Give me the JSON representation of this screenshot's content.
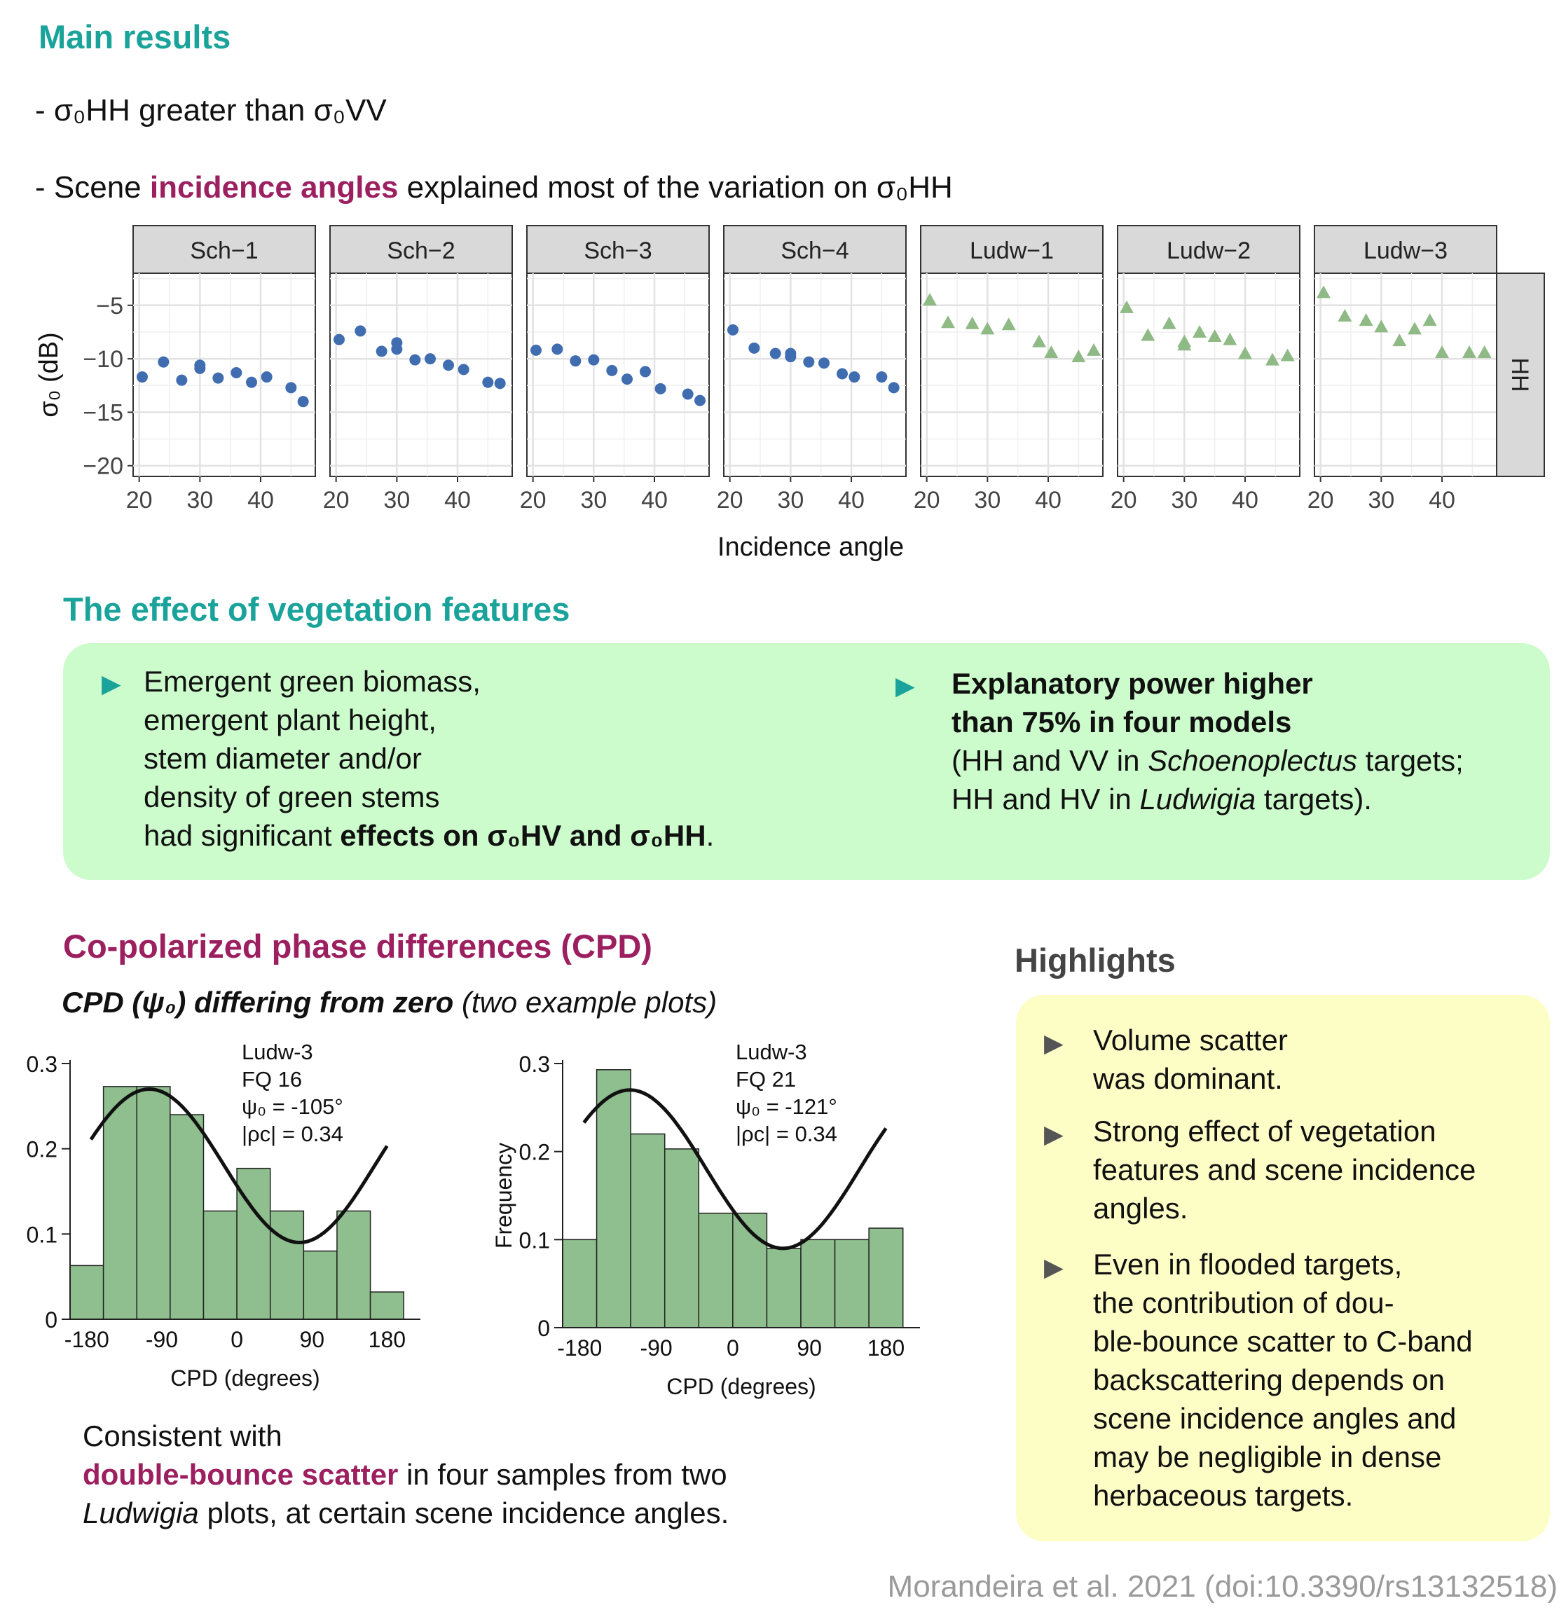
{
  "sections": {
    "main_results": {
      "heading": "Main results",
      "bullet1_prefix": "- σ₀HH greater than σ₀VV",
      "bullet2_pre": "- Scene ",
      "bullet2_highlight": "incidence angles",
      "bullet2_post": " explained most of the variation on σ₀HH"
    },
    "vegetation": {
      "heading": "The effect of vegetation features",
      "left_lines": [
        "Emergent green biomass,",
        "emergent plant height,",
        "stem diameter and/or",
        "density of green stems"
      ],
      "left_last_pre": "had significant ",
      "left_last_bold": "effects on σ₀HV and σ₀HH",
      "left_last_post": ".",
      "right_bold_1": "Explanatory power higher",
      "right_bold_2": "than 75% in four models",
      "right_l3_pre": "(HH and VV in ",
      "right_l3_italic": "Schoenoplectus",
      "right_l3_post": " targets;",
      "right_l4_pre": "HH and HV in ",
      "right_l4_italic": "Ludwigia",
      "right_l4_post": " targets)."
    },
    "cpd": {
      "heading": "Co-polarized phase differences (CPD)",
      "subtitle_bold": "CPD (ψ₀) differing from zero",
      "subtitle_rest": " (two example plots)",
      "consistent_1": "Consistent with",
      "consistent_highlight": "double-bounce scatter",
      "consistent_2": " in four samples from two",
      "consistent_3_italic": "Ludwigia",
      "consistent_3_rest": " plots, at certain scene incidence angles."
    },
    "highlights": {
      "heading": "Highlights",
      "items": [
        [
          "Volume scatter",
          "was dominant."
        ],
        [
          "Strong effect of vegetation",
          "features and scene incidence",
          "angles."
        ],
        [
          "Even in flooded targets,",
          "the contribution of dou-",
          "ble-bounce scatter to C-band",
          "backscattering depends on",
          "scene incidence angles and",
          "may be negligible in dense",
          "herbaceous targets."
        ]
      ]
    },
    "citation": "Morandeira et al. 2021 (doi:10.3390/rs13132518)"
  },
  "colors": {
    "teal": "#1aa39a",
    "purple": "#9c2060",
    "blue_points": "#3f6db0",
    "green_points": "#8fba86",
    "hist_fill": "#8fbf8f",
    "green_box": "#ccfccc",
    "yellow_box": "#fdfdc6"
  },
  "chart_data": [
    {
      "type": "scatter",
      "facet_strip_right": "HH",
      "xlabel": "Incidence angle",
      "ylabel": "σ₀ (dB)",
      "xlim": [
        19,
        49
      ],
      "ylim": [
        -21,
        -2
      ],
      "xticks": [
        20,
        30,
        40
      ],
      "yticks": [
        -5,
        -10,
        -15,
        -20
      ],
      "ytick_labels": [
        "−5",
        "−10",
        "−15",
        "−20"
      ],
      "xtick_labels": [
        "20",
        "30",
        "40"
      ],
      "grid": true,
      "panels": [
        {
          "name": "Sch−1",
          "marker": "circle",
          "color": "#3f6db0",
          "points": [
            [
              20.5,
              -11.7
            ],
            [
              24,
              -10.3
            ],
            [
              27,
              -12.0
            ],
            [
              30,
              -10.6
            ],
            [
              30,
              -10.9
            ],
            [
              33,
              -11.8
            ],
            [
              36,
              -11.3
            ],
            [
              38.5,
              -12.2
            ],
            [
              41,
              -11.7
            ],
            [
              45,
              -12.7
            ],
            [
              47,
              -14.0
            ]
          ]
        },
        {
          "name": "Sch−2",
          "marker": "circle",
          "color": "#3f6db0",
          "points": [
            [
              20.5,
              -8.2
            ],
            [
              24,
              -7.4
            ],
            [
              27.5,
              -9.3
            ],
            [
              30,
              -8.5
            ],
            [
              30,
              -9.1
            ],
            [
              33,
              -10.1
            ],
            [
              35.5,
              -10.0
            ],
            [
              38.5,
              -10.6
            ],
            [
              41,
              -11.0
            ],
            [
              45,
              -12.2
            ],
            [
              47,
              -12.3
            ]
          ]
        },
        {
          "name": "Sch−3",
          "marker": "circle",
          "color": "#3f6db0",
          "points": [
            [
              20.5,
              -9.2
            ],
            [
              24,
              -9.1
            ],
            [
              27,
              -10.2
            ],
            [
              30,
              -10.1
            ],
            [
              33,
              -11.1
            ],
            [
              35.5,
              -11.9
            ],
            [
              38.5,
              -11.2
            ],
            [
              41,
              -12.8
            ],
            [
              45.5,
              -13.3
            ],
            [
              47.5,
              -13.9
            ]
          ]
        },
        {
          "name": "Sch−4",
          "marker": "circle",
          "color": "#3f6db0",
          "points": [
            [
              20.5,
              -7.3
            ],
            [
              24,
              -9.0
            ],
            [
              27.5,
              -9.5
            ],
            [
              30,
              -9.5
            ],
            [
              30,
              -9.8
            ],
            [
              33,
              -10.3
            ],
            [
              35.5,
              -10.4
            ],
            [
              38.5,
              -11.4
            ],
            [
              40.5,
              -11.7
            ],
            [
              45,
              -11.7
            ],
            [
              47,
              -12.7
            ]
          ]
        },
        {
          "name": "Ludw−1",
          "marker": "triangle",
          "color": "#8fba86",
          "points": [
            [
              20.5,
              -4.5
            ],
            [
              23.5,
              -6.6
            ],
            [
              27.5,
              -6.7
            ],
            [
              30,
              -7.2
            ],
            [
              33.5,
              -6.8
            ],
            [
              38.5,
              -8.4
            ],
            [
              40.5,
              -9.4
            ],
            [
              45,
              -9.8
            ],
            [
              47.5,
              -9.2
            ]
          ]
        },
        {
          "name": "Ludw−2",
          "marker": "triangle",
          "color": "#8fba86",
          "points": [
            [
              20.5,
              -5.2
            ],
            [
              24,
              -7.8
            ],
            [
              27.5,
              -6.7
            ],
            [
              30,
              -8.4
            ],
            [
              30,
              -8.7
            ],
            [
              32.5,
              -7.5
            ],
            [
              35,
              -7.9
            ],
            [
              37.5,
              -8.2
            ],
            [
              40,
              -9.5
            ],
            [
              44.5,
              -10.1
            ],
            [
              47,
              -9.7
            ]
          ]
        },
        {
          "name": "Ludw−3",
          "marker": "triangle",
          "color": "#8fba86",
          "points": [
            [
              20.5,
              -3.8
            ],
            [
              24,
              -6.0
            ],
            [
              27.5,
              -6.4
            ],
            [
              30,
              -7.0
            ],
            [
              33,
              -8.3
            ],
            [
              35.5,
              -7.2
            ],
            [
              38,
              -6.4
            ],
            [
              40,
              -9.4
            ],
            [
              44.5,
              -9.4
            ],
            [
              47,
              -9.4
            ]
          ]
        }
      ]
    },
    {
      "type": "bar",
      "annotation": [
        "Ludw-3",
        "FQ 16",
        "ψ₀ = -105°",
        "|ρc| = 0.34"
      ],
      "xlabel": "CPD (degrees)",
      "ylabel": "",
      "xticks": [
        "-180",
        "-90",
        "0",
        "90",
        "180"
      ],
      "yticks": [
        "0",
        "0.1",
        "0.2",
        "0.3"
      ],
      "ylim": [
        0,
        0.3
      ],
      "bin_edges": [
        -200,
        -160,
        -120,
        -80,
        -40,
        0,
        40,
        80,
        120,
        160
      ],
      "values": [
        0.063,
        0.273,
        0.273,
        0.24,
        0.127,
        0.177,
        0.127,
        0.08,
        0.127,
        0.032
      ],
      "curve": "von-Mises fit, peak near -105°"
    },
    {
      "type": "bar",
      "annotation": [
        "Ludw-3",
        "FQ 21",
        "ψ₀ = -121°",
        "|ρc| = 0.34"
      ],
      "xlabel": "CPD (degrees)",
      "ylabel": "Frequency",
      "xticks": [
        "-180",
        "-90",
        "0",
        "90",
        "180"
      ],
      "yticks": [
        "0",
        "0.1",
        "0.2",
        "0.3"
      ],
      "ylim": [
        0,
        0.3
      ],
      "bin_edges": [
        -200,
        -160,
        -120,
        -80,
        -40,
        0,
        40,
        80,
        120,
        160
      ],
      "values": [
        0.1,
        0.293,
        0.22,
        0.203,
        0.13,
        0.13,
        0.09,
        0.1,
        0.1,
        0.113
      ],
      "curve": "von-Mises fit, peak near -121°"
    }
  ]
}
